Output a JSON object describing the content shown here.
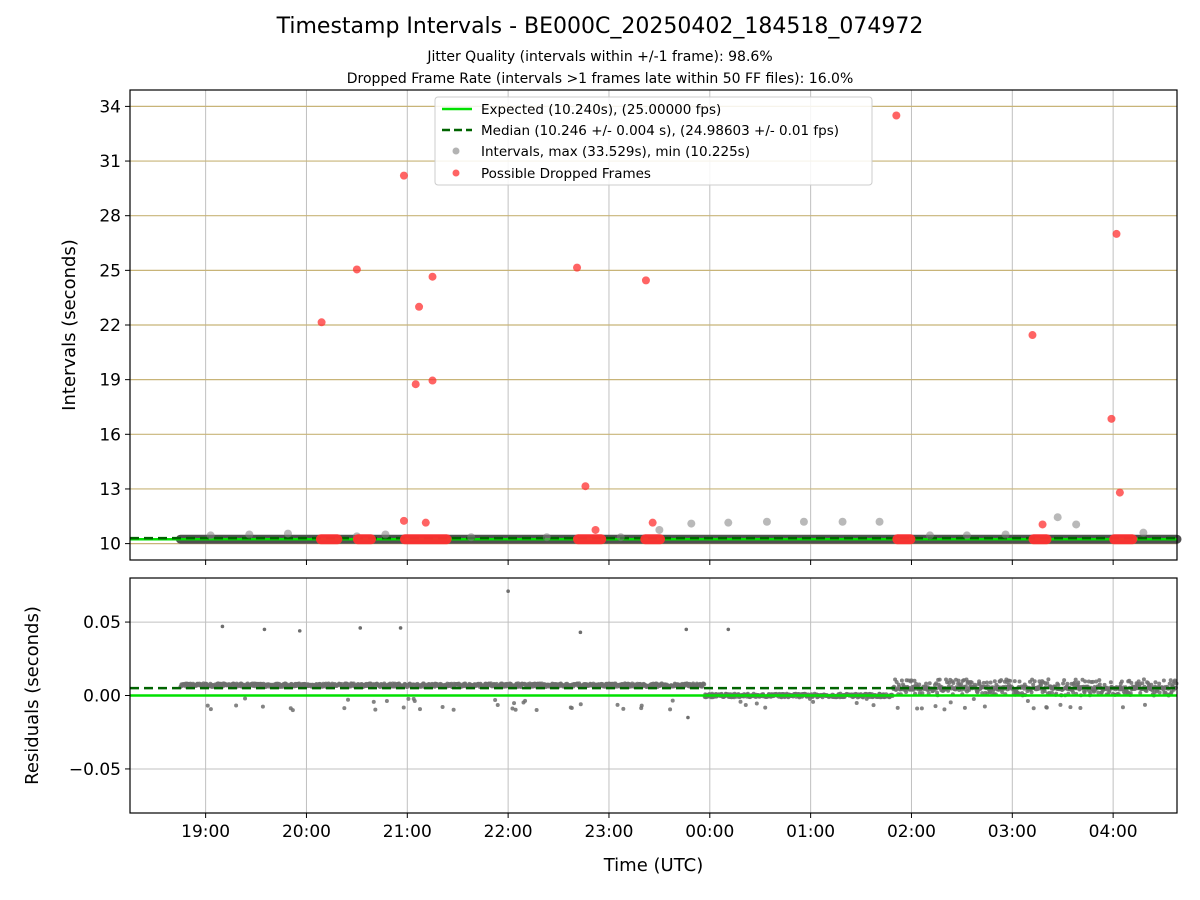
{
  "figure": {
    "title": "Timestamp Intervals - BE000C_20250402_184518_074972",
    "subtitle_1": "Jitter Quality (intervals within +/-1 frame): 98.6%",
    "subtitle_2": "Dropped Frame Rate (intervals >1 frames late within 50 FF files): 16.0%"
  },
  "colors": {
    "expected": "#00e000",
    "median": "#006400",
    "intervals": "#808080",
    "dropped": "#ff3030",
    "grid_v": "#c0c0c0",
    "grid_h": "#c8b478"
  },
  "chart_data": [
    {
      "type": "scatter",
      "panel": "intervals",
      "ylabel": "Intervals (seconds)",
      "ylim": [
        9.1,
        34.9
      ],
      "yticks": [
        10,
        13,
        16,
        19,
        22,
        25,
        28,
        31,
        34
      ],
      "xlim": [
        "18:15",
        "04:38"
      ],
      "grid": "on",
      "legend_placement": "top-center",
      "legend": [
        "Expected (10.240s), (25.00000 fps)",
        "Median (10.246 +/- 0.004 s), (24.98603 +/- 0.01 fps)",
        "Intervals, max (33.529s), min (10.225s)",
        "Possible Dropped Frames"
      ],
      "expected_value": 10.24,
      "median_value": 10.246,
      "baseline_band": {
        "x_start": "18:45",
        "x_end": "04:38",
        "y": 10.24
      },
      "gray_points": [
        {
          "x": "19:03",
          "y": 10.45
        },
        {
          "x": "19:26",
          "y": 10.5
        },
        {
          "x": "19:49",
          "y": 10.55
        },
        {
          "x": "20:30",
          "y": 10.4
        },
        {
          "x": "20:47",
          "y": 10.5
        },
        {
          "x": "21:38",
          "y": 10.35
        },
        {
          "x": "22:23",
          "y": 10.35
        },
        {
          "x": "23:07",
          "y": 10.35
        },
        {
          "x": "23:30",
          "y": 10.75
        },
        {
          "x": "23:49",
          "y": 11.1
        },
        {
          "x": "00:11",
          "y": 11.15
        },
        {
          "x": "00:34",
          "y": 11.2
        },
        {
          "x": "00:56",
          "y": 11.2
        },
        {
          "x": "01:19",
          "y": 11.2
        },
        {
          "x": "01:41",
          "y": 11.2
        },
        {
          "x": "02:11",
          "y": 10.45
        },
        {
          "x": "02:33",
          "y": 10.45
        },
        {
          "x": "02:56",
          "y": 10.5
        },
        {
          "x": "03:27",
          "y": 11.45
        },
        {
          "x": "03:38",
          "y": 11.05
        },
        {
          "x": "04:18",
          "y": 10.6
        }
      ],
      "dropped_points": [
        {
          "x": "20:09",
          "y": 22.15
        },
        {
          "x": "20:30",
          "y": 25.05
        },
        {
          "x": "20:58",
          "y": 30.2
        },
        {
          "x": "20:58",
          "y": 11.25
        },
        {
          "x": "21:05",
          "y": 18.75
        },
        {
          "x": "21:07",
          "y": 23.0
        },
        {
          "x": "21:11",
          "y": 11.15
        },
        {
          "x": "21:15",
          "y": 24.65
        },
        {
          "x": "21:15",
          "y": 18.95
        },
        {
          "x": "22:41",
          "y": 25.15
        },
        {
          "x": "22:46",
          "y": 13.15
        },
        {
          "x": "22:52",
          "y": 10.75
        },
        {
          "x": "23:22",
          "y": 24.45
        },
        {
          "x": "23:26",
          "y": 11.15
        },
        {
          "x": "01:51",
          "y": 33.5
        },
        {
          "x": "03:12",
          "y": 21.45
        },
        {
          "x": "03:18",
          "y": 11.05
        },
        {
          "x": "03:59",
          "y": 16.85
        },
        {
          "x": "04:02",
          "y": 27.0
        },
        {
          "x": "04:04",
          "y": 12.8
        }
      ],
      "dropped_clusters": [
        {
          "x_start": "20:08",
          "x_end": "20:19",
          "y": 10.24
        },
        {
          "x_start": "20:30",
          "x_end": "20:39",
          "y": 10.24
        },
        {
          "x_start": "20:58",
          "x_end": "21:24",
          "y": 10.24
        },
        {
          "x_start": "22:41",
          "x_end": "22:56",
          "y": 10.24
        },
        {
          "x_start": "23:21",
          "x_end": "23:31",
          "y": 10.24
        },
        {
          "x_start": "01:51",
          "x_end": "02:00",
          "y": 10.24
        },
        {
          "x_start": "03:12",
          "x_end": "03:21",
          "y": 10.24
        },
        {
          "x_start": "04:00",
          "x_end": "04:12",
          "y": 10.24
        }
      ]
    },
    {
      "type": "scatter",
      "panel": "residuals",
      "ylabel": "Residuals (seconds)",
      "xlabel": "Time (UTC)",
      "ylim": [
        -0.08,
        0.08
      ],
      "yticks": [
        0.05,
        0.0,
        -0.05
      ],
      "ytick_labels": [
        "0.05",
        "0.00",
        "−0.05"
      ],
      "xticks": [
        "19:00",
        "20:00",
        "21:00",
        "22:00",
        "23:00",
        "00:00",
        "01:00",
        "02:00",
        "03:00",
        "04:00"
      ],
      "grid": "on",
      "expected_value": 0.0,
      "median_value": 0.005,
      "residual_segments": [
        {
          "x_start": "18:45",
          "x_end": "23:57",
          "y": 0.007
        },
        {
          "x_start": "23:57",
          "x_end": "01:49",
          "y": 0.0
        },
        {
          "x_start": "01:49",
          "x_end": "04:38",
          "y": 0.005
        }
      ],
      "outliers": [
        {
          "x": "19:10",
          "y": 0.047
        },
        {
          "x": "19:35",
          "y": 0.045
        },
        {
          "x": "19:56",
          "y": 0.044
        },
        {
          "x": "20:32",
          "y": 0.046
        },
        {
          "x": "20:56",
          "y": 0.046
        },
        {
          "x": "22:00",
          "y": 0.071
        },
        {
          "x": "22:43",
          "y": 0.043
        },
        {
          "x": "23:46",
          "y": 0.045
        },
        {
          "x": "00:11",
          "y": 0.045
        },
        {
          "x": "23:47",
          "y": -0.015
        }
      ]
    }
  ]
}
